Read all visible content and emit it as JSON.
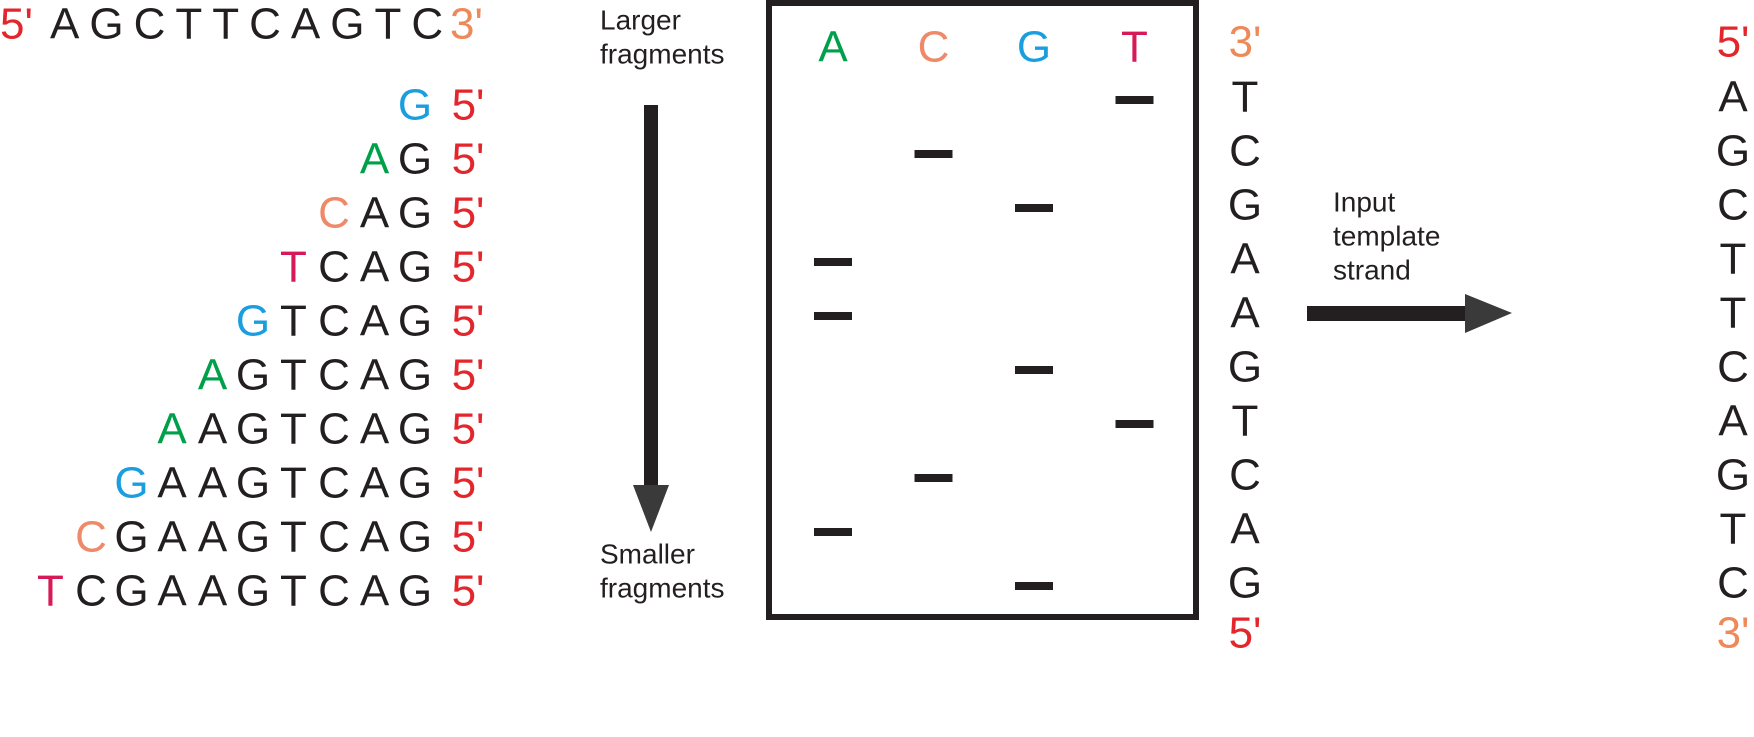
{
  "template": {
    "start": "5'",
    "sequence": "AGCTTCAGTC",
    "end": "3'"
  },
  "fragments": [
    [
      "G"
    ],
    [
      "A",
      "G"
    ],
    [
      "C",
      "A",
      "G"
    ],
    [
      "T",
      "C",
      "A",
      "G"
    ],
    [
      "G",
      "T",
      "C",
      "A",
      "G"
    ],
    [
      "A",
      "G",
      "T",
      "C",
      "A",
      "G"
    ],
    [
      "A",
      "A",
      "G",
      "T",
      "C",
      "A",
      "G"
    ],
    [
      "G",
      "A",
      "A",
      "G",
      "T",
      "C",
      "A",
      "G"
    ],
    [
      "C",
      "G",
      "A",
      "A",
      "G",
      "T",
      "C",
      "A",
      "G"
    ],
    [
      "T",
      "C",
      "G",
      "A",
      "A",
      "G",
      "T",
      "C",
      "A",
      "G"
    ]
  ],
  "fragment_end": "5'",
  "base_colors": {
    "A": "#00a04a",
    "C": "#ee8a6a",
    "G": "#1a9ee0",
    "T": "#d61a58"
  },
  "prime_colors": {
    "5'": "#e3262c",
    "3'": "#ee8a5a"
  },
  "larger_label": [
    "Larger",
    "fragments"
  ],
  "smaller_label": [
    "Smaller",
    "fragments"
  ],
  "gel": {
    "lanes": [
      "A",
      "C",
      "G",
      "T"
    ]
  },
  "read": {
    "start": "3'",
    "letters": [
      "T",
      "C",
      "G",
      "A",
      "A",
      "G",
      "T",
      "C",
      "A",
      "G"
    ],
    "end": "5'"
  },
  "input_label": [
    "Input",
    "template",
    "strand"
  ],
  "result": {
    "start": "5'",
    "letters": [
      "A",
      "G",
      "C",
      "T",
      "T",
      "C",
      "A",
      "G",
      "T",
      "C"
    ],
    "end": "3'"
  }
}
